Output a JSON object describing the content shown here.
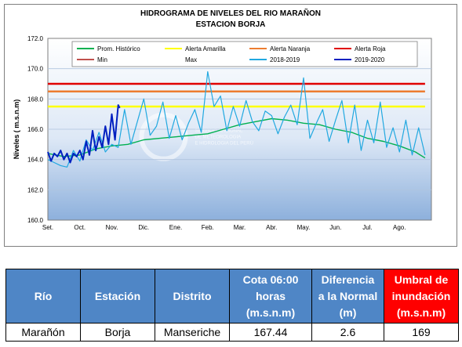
{
  "chart_data": {
    "type": "line",
    "title": "HIDROGRAMA DE NIVELES DEL RIO MARAÑON",
    "subtitle": "ESTACION BORJA",
    "ylabel": "Niveles ( m.s.n.m)",
    "xlabel": "",
    "ylim": [
      160.0,
      172.0
    ],
    "y_ticks": [
      "160.0",
      "162.0",
      "164.0",
      "166.0",
      "168.0",
      "170.0",
      "172.0"
    ],
    "x_tick_labels": [
      "Set.",
      "Oct.",
      "Nov.",
      "Dic.",
      "Ene.",
      "Feb.",
      "Mar.",
      "Abr.",
      "May.",
      "Jun.",
      "Jul.",
      "Ago."
    ],
    "grid": true,
    "legend_position": "top",
    "legend": [
      "Prom. Histórico",
      "Alerta Amarilla",
      "Alerta Naranja",
      "Alerta Roja",
      "Min",
      "Max",
      "2018-2019",
      "2019-2020"
    ],
    "series": [
      {
        "name": "Prom. Histórico",
        "color": "#00b050",
        "x_month": [
          0,
          0.5,
          1,
          1.5,
          2,
          2.5,
          3,
          3.5,
          4,
          4.5,
          5,
          5.5,
          6,
          6.5,
          7,
          7.5,
          8,
          8.5,
          9,
          9.5,
          10,
          10.5,
          11,
          11.5,
          11.8
        ],
        "values": [
          164.4,
          164.2,
          164.3,
          164.7,
          164.9,
          165.0,
          165.3,
          165.4,
          165.5,
          165.6,
          165.7,
          166.0,
          166.3,
          166.5,
          166.7,
          166.6,
          166.4,
          166.3,
          166.0,
          165.8,
          165.4,
          165.2,
          164.9,
          164.5,
          164.1
        ]
      },
      {
        "name": "Alerta Amarilla",
        "color": "#ffff00",
        "x_month": [
          0,
          11.8
        ],
        "values": [
          167.5,
          167.5
        ]
      },
      {
        "name": "Alerta Naranja",
        "color": "#ed7d31",
        "x_month": [
          0,
          11.8
        ],
        "values": [
          168.5,
          168.5
        ]
      },
      {
        "name": "Alerta Roja",
        "color": "#e00000",
        "x_month": [
          0,
          11.8
        ],
        "values": [
          169.0,
          169.0
        ]
      },
      {
        "name": "2018-2019",
        "color": "#21a8e0",
        "x_month": [
          0,
          0.2,
          0.4,
          0.6,
          0.8,
          1.0,
          1.2,
          1.4,
          1.6,
          1.8,
          2.0,
          2.2,
          2.4,
          2.6,
          2.8,
          3.0,
          3.2,
          3.4,
          3.6,
          3.8,
          4.0,
          4.2,
          4.4,
          4.6,
          4.8,
          5.0,
          5.2,
          5.4,
          5.6,
          5.8,
          6.0,
          6.2,
          6.4,
          6.6,
          6.8,
          7.0,
          7.2,
          7.4,
          7.6,
          7.8,
          8.0,
          8.2,
          8.4,
          8.6,
          8.8,
          9.0,
          9.2,
          9.4,
          9.6,
          9.8,
          10.0,
          10.2,
          10.4,
          10.6,
          10.8,
          11.0,
          11.2,
          11.4,
          11.6,
          11.8
        ],
        "values": [
          164.0,
          163.8,
          163.6,
          163.5,
          164.6,
          163.9,
          165.3,
          164.6,
          165.8,
          164.5,
          165.0,
          164.8,
          167.3,
          165.0,
          166.5,
          168.0,
          165.6,
          166.2,
          167.8,
          165.4,
          166.9,
          165.3,
          166.4,
          167.3,
          165.8,
          169.8,
          167.5,
          168.2,
          165.9,
          167.5,
          166.2,
          167.9,
          166.5,
          165.9,
          167.2,
          166.9,
          165.7,
          166.8,
          167.6,
          166.3,
          169.4,
          165.4,
          166.4,
          167.3,
          165.2,
          166.6,
          167.9,
          165.1,
          167.6,
          164.6,
          166.6,
          165.1,
          167.8,
          164.8,
          166.1,
          164.5,
          166.6,
          164.3,
          166.1,
          164.3
        ]
      },
      {
        "name": "2019-2020",
        "color": "#0020c0",
        "x_month": [
          0,
          0.1,
          0.2,
          0.3,
          0.4,
          0.5,
          0.6,
          0.7,
          0.8,
          0.9,
          1.0,
          1.1,
          1.2,
          1.3,
          1.4,
          1.5,
          1.6,
          1.7,
          1.8,
          1.9,
          2.0,
          2.1,
          2.2,
          2.25
        ],
        "values": [
          164.5,
          163.9,
          164.4,
          164.2,
          164.6,
          164.0,
          164.4,
          163.8,
          164.4,
          164.2,
          164.6,
          164.0,
          165.2,
          164.3,
          165.9,
          164.6,
          165.5,
          164.8,
          166.2,
          165.0,
          167.0,
          165.3,
          167.6,
          167.4
        ]
      },
      {
        "name": "Min",
        "color": "#c0504d",
        "x_month": [],
        "values": []
      },
      {
        "name": "Max",
        "color": "#ffffff",
        "x_month": [],
        "values": []
      }
    ]
  },
  "watermark": {
    "lines": [
      "SERVICIO NACIONAL",
      "DE METEOROLOGIA",
      "E HIDROLOGIA DEL PERÚ"
    ]
  },
  "table": {
    "headers": {
      "rio": "Río",
      "estacion": "Estación",
      "distrito": "Distrito",
      "cota": [
        "Cota 06:00",
        "horas",
        "(m.s.n.m)"
      ],
      "diferencia": [
        "Diferencia",
        "a la Normal",
        "(m)"
      ],
      "umbral": [
        "Umbral de",
        "inundación",
        "(m.s.n.m)"
      ]
    },
    "row": {
      "rio": "Marañón",
      "estacion": "Borja",
      "distrito": "Manseriche",
      "cota": "167.44",
      "diferencia": "2.6",
      "umbral": "169"
    }
  }
}
